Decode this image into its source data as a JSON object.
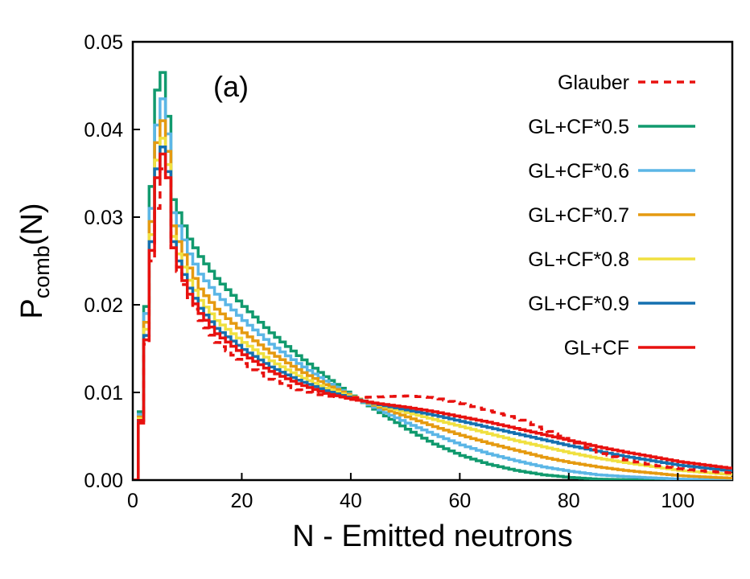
{
  "chart_data": {
    "type": "line",
    "style": "step",
    "panel_label": "(a)",
    "xlabel": "N - Emitted neutrons",
    "ylabel_main": "P",
    "ylabel_sub": "comb",
    "ylabel_tail": "(N)",
    "xlim": [
      0,
      110
    ],
    "ylim": [
      0,
      0.05
    ],
    "xticks": [
      0,
      20,
      40,
      60,
      80,
      100
    ],
    "xtick_labels": [
      "0",
      "20",
      "40",
      "60",
      "80",
      "100"
    ],
    "yticks": [
      0,
      0.01,
      0.02,
      0.03,
      0.04,
      0.05
    ],
    "ytick_labels": [
      "0.00",
      "0.01",
      "0.02",
      "0.03",
      "0.04",
      "0.05"
    ],
    "legend_position": "top-right",
    "series": [
      {
        "name": "Glauber",
        "color": "#e8110f",
        "dashed": true,
        "points": [
          [
            0,
            0
          ],
          [
            1,
            0.0068
          ],
          [
            2,
            0.0155
          ],
          [
            3,
            0.025
          ],
          [
            4,
            0.031
          ],
          [
            5,
            0.0355
          ],
          [
            6,
            0.0345
          ],
          [
            7,
            0.0265
          ],
          [
            8,
            0.0238
          ],
          [
            10,
            0.0208
          ],
          [
            12,
            0.0182
          ],
          [
            15,
            0.0157
          ],
          [
            20,
            0.0133
          ],
          [
            25,
            0.0115
          ],
          [
            30,
            0.0103
          ],
          [
            35,
            0.0096
          ],
          [
            40,
            0.0094
          ],
          [
            45,
            0.0095
          ],
          [
            50,
            0.0096
          ],
          [
            55,
            0.0094
          ],
          [
            60,
            0.0087
          ],
          [
            65,
            0.0079
          ],
          [
            70,
            0.0071
          ],
          [
            75,
            0.0058
          ],
          [
            80,
            0.0045
          ],
          [
            85,
            0.0032
          ],
          [
            90,
            0.0023
          ],
          [
            95,
            0.0017
          ],
          [
            100,
            0.0013
          ],
          [
            105,
            0.001
          ],
          [
            110,
            0.0008
          ]
        ]
      },
      {
        "name": "GL+CF*0.5",
        "color": "#119a6e",
        "dashed": false,
        "points": [
          [
            0,
            0
          ],
          [
            1,
            0.0078
          ],
          [
            2,
            0.0198
          ],
          [
            3,
            0.0335
          ],
          [
            4,
            0.0445
          ],
          [
            5,
            0.0465
          ],
          [
            6,
            0.0415
          ],
          [
            7,
            0.032
          ],
          [
            8,
            0.0305
          ],
          [
            10,
            0.0275
          ],
          [
            12,
            0.0255
          ],
          [
            15,
            0.023
          ],
          [
            20,
            0.0198
          ],
          [
            25,
            0.0168
          ],
          [
            30,
            0.0142
          ],
          [
            35,
            0.0118
          ],
          [
            40,
            0.0096
          ],
          [
            45,
            0.0077
          ],
          [
            50,
            0.0058
          ],
          [
            55,
            0.0041
          ],
          [
            60,
            0.0028
          ],
          [
            65,
            0.0018
          ],
          [
            70,
            0.0011
          ],
          [
            75,
            0.0006
          ],
          [
            80,
            0.0003
          ],
          [
            85,
            0.0001
          ],
          [
            90,
            5e-05
          ],
          [
            100,
            0
          ],
          [
            110,
            0
          ]
        ]
      },
      {
        "name": "GL+CF*0.6",
        "color": "#5bb6e6",
        "dashed": false,
        "points": [
          [
            0,
            0
          ],
          [
            1,
            0.0075
          ],
          [
            2,
            0.019
          ],
          [
            3,
            0.031
          ],
          [
            4,
            0.0405
          ],
          [
            5,
            0.0435
          ],
          [
            6,
            0.0395
          ],
          [
            7,
            0.0305
          ],
          [
            8,
            0.029
          ],
          [
            10,
            0.0258
          ],
          [
            12,
            0.0235
          ],
          [
            15,
            0.0212
          ],
          [
            20,
            0.0182
          ],
          [
            25,
            0.0155
          ],
          [
            30,
            0.0133
          ],
          [
            35,
            0.0113
          ],
          [
            40,
            0.0095
          ],
          [
            45,
            0.008
          ],
          [
            50,
            0.0065
          ],
          [
            55,
            0.0052
          ],
          [
            60,
            0.004
          ],
          [
            65,
            0.003
          ],
          [
            70,
            0.0022
          ],
          [
            75,
            0.0015
          ],
          [
            80,
            0.001
          ],
          [
            85,
            0.0006
          ],
          [
            90,
            0.0004
          ],
          [
            100,
            0.0001
          ],
          [
            110,
            0
          ]
        ]
      },
      {
        "name": "GL+CF*0.7",
        "color": "#e59a10",
        "dashed": false,
        "points": [
          [
            0,
            0
          ],
          [
            1,
            0.0072
          ],
          [
            2,
            0.018
          ],
          [
            3,
            0.0295
          ],
          [
            4,
            0.0385
          ],
          [
            5,
            0.041
          ],
          [
            6,
            0.0375
          ],
          [
            7,
            0.029
          ],
          [
            8,
            0.0272
          ],
          [
            10,
            0.0242
          ],
          [
            12,
            0.0218
          ],
          [
            15,
            0.0195
          ],
          [
            20,
            0.0168
          ],
          [
            25,
            0.0145
          ],
          [
            30,
            0.0126
          ],
          [
            35,
            0.0109
          ],
          [
            40,
            0.0095
          ],
          [
            45,
            0.0083
          ],
          [
            50,
            0.0072
          ],
          [
            55,
            0.0061
          ],
          [
            60,
            0.0051
          ],
          [
            65,
            0.0042
          ],
          [
            70,
            0.0034
          ],
          [
            75,
            0.0026
          ],
          [
            80,
            0.002
          ],
          [
            85,
            0.0015
          ],
          [
            90,
            0.0011
          ],
          [
            100,
            0.0005
          ],
          [
            110,
            0.0002
          ]
        ]
      },
      {
        "name": "GL+CF*0.8",
        "color": "#f0e040",
        "dashed": false,
        "points": [
          [
            0,
            0
          ],
          [
            1,
            0.007
          ],
          [
            2,
            0.0172
          ],
          [
            3,
            0.028
          ],
          [
            4,
            0.0365
          ],
          [
            5,
            0.039
          ],
          [
            6,
            0.036
          ],
          [
            7,
            0.0278
          ],
          [
            8,
            0.0258
          ],
          [
            10,
            0.0228
          ],
          [
            12,
            0.0205
          ],
          [
            15,
            0.0182
          ],
          [
            20,
            0.0157
          ],
          [
            25,
            0.0136
          ],
          [
            30,
            0.0119
          ],
          [
            35,
            0.0105
          ],
          [
            40,
            0.0094
          ],
          [
            45,
            0.0085
          ],
          [
            50,
            0.0077
          ],
          [
            55,
            0.0069
          ],
          [
            60,
            0.0061
          ],
          [
            65,
            0.0053
          ],
          [
            70,
            0.0045
          ],
          [
            75,
            0.0038
          ],
          [
            80,
            0.0031
          ],
          [
            85,
            0.0025
          ],
          [
            90,
            0.002
          ],
          [
            100,
            0.0011
          ],
          [
            110,
            0.0006
          ]
        ]
      },
      {
        "name": "GL+CF*0.9",
        "color": "#1470b0",
        "dashed": false,
        "points": [
          [
            0,
            0
          ],
          [
            1,
            0.0068
          ],
          [
            2,
            0.0165
          ],
          [
            3,
            0.0272
          ],
          [
            4,
            0.0355
          ],
          [
            5,
            0.038
          ],
          [
            6,
            0.0352
          ],
          [
            7,
            0.0272
          ],
          [
            8,
            0.025
          ],
          [
            10,
            0.0219
          ],
          [
            12,
            0.0196
          ],
          [
            15,
            0.0173
          ],
          [
            20,
            0.0149
          ],
          [
            25,
            0.0129
          ],
          [
            30,
            0.0114
          ],
          [
            35,
            0.0102
          ],
          [
            40,
            0.0093
          ],
          [
            45,
            0.0086
          ],
          [
            50,
            0.008
          ],
          [
            55,
            0.0074
          ],
          [
            60,
            0.0067
          ],
          [
            65,
            0.006
          ],
          [
            70,
            0.0053
          ],
          [
            75,
            0.0046
          ],
          [
            80,
            0.0039
          ],
          [
            85,
            0.0033
          ],
          [
            90,
            0.0027
          ],
          [
            100,
            0.0017
          ],
          [
            110,
            0.001
          ]
        ]
      },
      {
        "name": "GL+CF",
        "color": "#e8110f",
        "dashed": false,
        "points": [
          [
            0,
            0
          ],
          [
            1,
            0.0065
          ],
          [
            2,
            0.016
          ],
          [
            3,
            0.0262
          ],
          [
            4,
            0.0345
          ],
          [
            5,
            0.0372
          ],
          [
            6,
            0.0345
          ],
          [
            7,
            0.0265
          ],
          [
            8,
            0.0243
          ],
          [
            10,
            0.0212
          ],
          [
            12,
            0.019
          ],
          [
            15,
            0.0167
          ],
          [
            20,
            0.0143
          ],
          [
            25,
            0.0124
          ],
          [
            30,
            0.011
          ],
          [
            35,
            0.0099
          ],
          [
            40,
            0.0092
          ],
          [
            45,
            0.0087
          ],
          [
            50,
            0.0083
          ],
          [
            55,
            0.0078
          ],
          [
            60,
            0.0072
          ],
          [
            65,
            0.0066
          ],
          [
            70,
            0.0059
          ],
          [
            75,
            0.0052
          ],
          [
            80,
            0.0045
          ],
          [
            85,
            0.0038
          ],
          [
            90,
            0.0032
          ],
          [
            100,
            0.0021
          ],
          [
            110,
            0.0013
          ]
        ]
      }
    ]
  }
}
